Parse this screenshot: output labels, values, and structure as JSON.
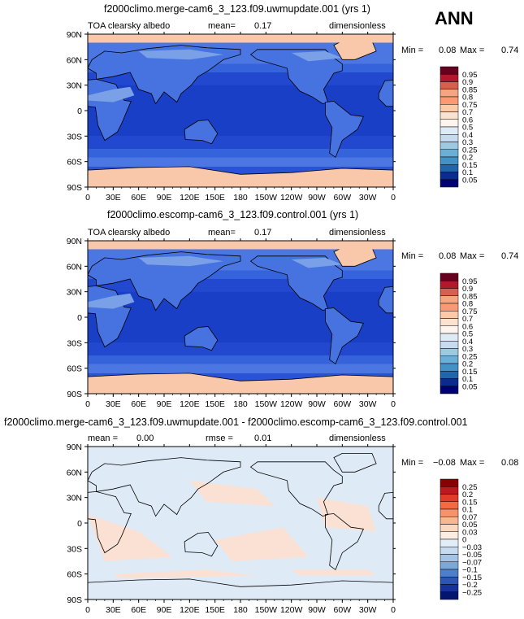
{
  "season": "ANN",
  "panels": [
    {
      "title": "f2000climo.merge-cam6_3_123.f09.uwmupdate.001 (yrs 1)",
      "left_label": "TOA clearsky albedo",
      "mean_label": "mean=",
      "mean_value": "0.17",
      "units": "dimensionless",
      "min_label": "Min =",
      "min_value": "0.08",
      "max_label": "Max =",
      "max_value": "0.74",
      "colorbar_labels": [
        "0.95",
        "0.9",
        "0.85",
        "0.8",
        "0.75",
        "0.7",
        "0.6",
        "0.5",
        "0.4",
        "0.3",
        "0.25",
        "0.2",
        "0.15",
        "0.1",
        "0.05"
      ]
    },
    {
      "title": "f2000climo.escomp-cam6_3_123.f09.control.001 (yrs 1)",
      "left_label": "TOA clearsky albedo",
      "mean_label": "mean=",
      "mean_value": "0.17",
      "units": "dimensionless",
      "min_label": "Min =",
      "min_value": "0.08",
      "max_label": "Max =",
      "max_value": "0.74",
      "colorbar_labels": [
        "0.95",
        "0.9",
        "0.85",
        "0.8",
        "0.75",
        "0.7",
        "0.6",
        "0.5",
        "0.4",
        "0.3",
        "0.25",
        "0.2",
        "0.15",
        "0.1",
        "0.05"
      ]
    },
    {
      "title": "f2000climo.merge-cam6_3_123.f09.uwmupdate.001 - f2000climo.escomp-cam6_3_123.f09.control.001",
      "left_label": "mean =",
      "mean_label": "",
      "mean_value": "0.00",
      "rmse_label": "rmse =",
      "rmse_value": "0.01",
      "units": "dimensionless",
      "min_label": "Min =",
      "min_value": "−0.08",
      "max_label": "Max =",
      "max_value": "0.08",
      "colorbar_labels": [
        "0.25",
        "0.2",
        "0.15",
        "0.1",
        "0.07",
        "0.05",
        "0.03",
        "0",
        "−0.03",
        "−0.05",
        "−0.07",
        "−0.1",
        "−0.15",
        "−0.2",
        "−0.25"
      ]
    }
  ],
  "x_ticks": [
    "0",
    "30E",
    "60E",
    "90E",
    "120E",
    "150E",
    "180",
    "150W",
    "120W",
    "90W",
    "60W",
    "30W",
    "0"
  ],
  "y_ticks": [
    "90N",
    "60N",
    "30N",
    "0",
    "30S",
    "60S",
    "90S"
  ],
  "colors": {
    "abs_scale": [
      "#67001f",
      "#b2182b",
      "#d6604d",
      "#f4a582",
      "#fb9a72",
      "#fdc9a6",
      "#fde3cf",
      "#fff5ee",
      "#deebf7",
      "#c6dbef",
      "#9ecae1",
      "#6baed6",
      "#4292c6",
      "#2166ac",
      "#0b2c8f",
      "#000075"
    ],
    "diff_scale": [
      "#8b0000",
      "#c0161d",
      "#e23b2a",
      "#f26b43",
      "#f7936a",
      "#f9b791",
      "#fcd7bf",
      "#fdece0",
      "#e2edf8",
      "#c6dbef",
      "#a3c4e6",
      "#7aa8d9",
      "#4f7fc8",
      "#2e55b5",
      "#14319c",
      "#03156e"
    ],
    "ocean_deep": "#1a3fc7",
    "ocean": "#2a52d6",
    "land_low": "#4673df",
    "land_mid": "#7aa0e8",
    "ice": "#f9c8ab",
    "diff_bg": "#deebf7",
    "diff_pos": "#fde0cf"
  },
  "chart_data": [
    {
      "type": "heatmap",
      "title": "f2000climo.merge-cam6_3_123.f09.uwmupdate.001 (yrs 1)",
      "variable": "TOA clearsky albedo",
      "mean": 0.17,
      "min": 0.08,
      "max": 0.74,
      "units": "dimensionless",
      "levels": [
        0.05,
        0.1,
        0.15,
        0.2,
        0.25,
        0.3,
        0.4,
        0.5,
        0.6,
        0.7,
        0.75,
        0.8,
        0.85,
        0.9,
        0.95
      ],
      "xlim": [
        0,
        360
      ],
      "ylim": [
        -90,
        90
      ]
    },
    {
      "type": "heatmap",
      "title": "f2000climo.escomp-cam6_3_123.f09.control.001 (yrs 1)",
      "variable": "TOA clearsky albedo",
      "mean": 0.17,
      "min": 0.08,
      "max": 0.74,
      "units": "dimensionless",
      "levels": [
        0.05,
        0.1,
        0.15,
        0.2,
        0.25,
        0.3,
        0.4,
        0.5,
        0.6,
        0.7,
        0.75,
        0.8,
        0.85,
        0.9,
        0.95
      ],
      "xlim": [
        0,
        360
      ],
      "ylim": [
        -90,
        90
      ]
    },
    {
      "type": "heatmap",
      "title": "f2000climo.merge-cam6_3_123.f09.uwmupdate.001 - f2000climo.escomp-cam6_3_123.f09.control.001",
      "mean": 0.0,
      "rmse": 0.01,
      "min": -0.08,
      "max": 0.08,
      "units": "dimensionless",
      "levels": [
        -0.25,
        -0.2,
        -0.15,
        -0.1,
        -0.07,
        -0.05,
        -0.03,
        0,
        0.03,
        0.05,
        0.07,
        0.1,
        0.15,
        0.2,
        0.25
      ],
      "xlim": [
        0,
        360
      ],
      "ylim": [
        -90,
        90
      ]
    }
  ]
}
